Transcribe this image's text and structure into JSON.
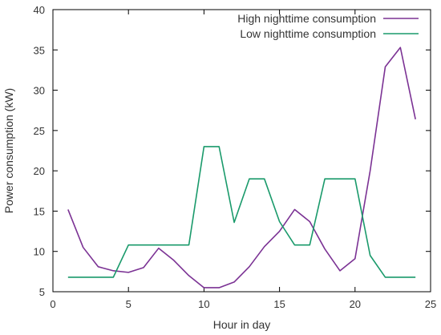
{
  "chart_data": {
    "type": "line",
    "xlabel": "Hour in day",
    "ylabel": "Power consumption (kW)",
    "xlim": [
      0,
      25
    ],
    "ylim": [
      5,
      40
    ],
    "xticks": [
      0,
      5,
      10,
      15,
      20,
      25
    ],
    "yticks": [
      5,
      10,
      15,
      20,
      25,
      30,
      35,
      40
    ],
    "grid": false,
    "legend_position": "top-right",
    "x": [
      1,
      2,
      3,
      4,
      5,
      6,
      7,
      8,
      9,
      10,
      11,
      12,
      13,
      14,
      15,
      16,
      17,
      18,
      19,
      20,
      21,
      22,
      23,
      24
    ],
    "series": [
      {
        "name": "High nighttime consumption",
        "color": "#7b3294",
        "values": [
          15.2,
          10.5,
          8.1,
          7.6,
          7.4,
          8.0,
          10.4,
          8.9,
          7.0,
          5.5,
          5.5,
          6.2,
          8.1,
          10.6,
          12.5,
          15.2,
          13.7,
          10.3,
          7.6,
          9.1,
          20.0,
          32.9,
          35.3,
          26.4
        ]
      },
      {
        "name": "Low nighttime consumption",
        "color": "#1a9a6b",
        "values": [
          6.8,
          6.8,
          6.8,
          6.8,
          10.8,
          10.8,
          10.8,
          10.8,
          10.8,
          23.0,
          23.0,
          13.6,
          19.0,
          19.0,
          13.7,
          10.8,
          10.8,
          19.0,
          19.0,
          19.0,
          9.5,
          6.8,
          6.8,
          6.8
        ]
      }
    ]
  }
}
